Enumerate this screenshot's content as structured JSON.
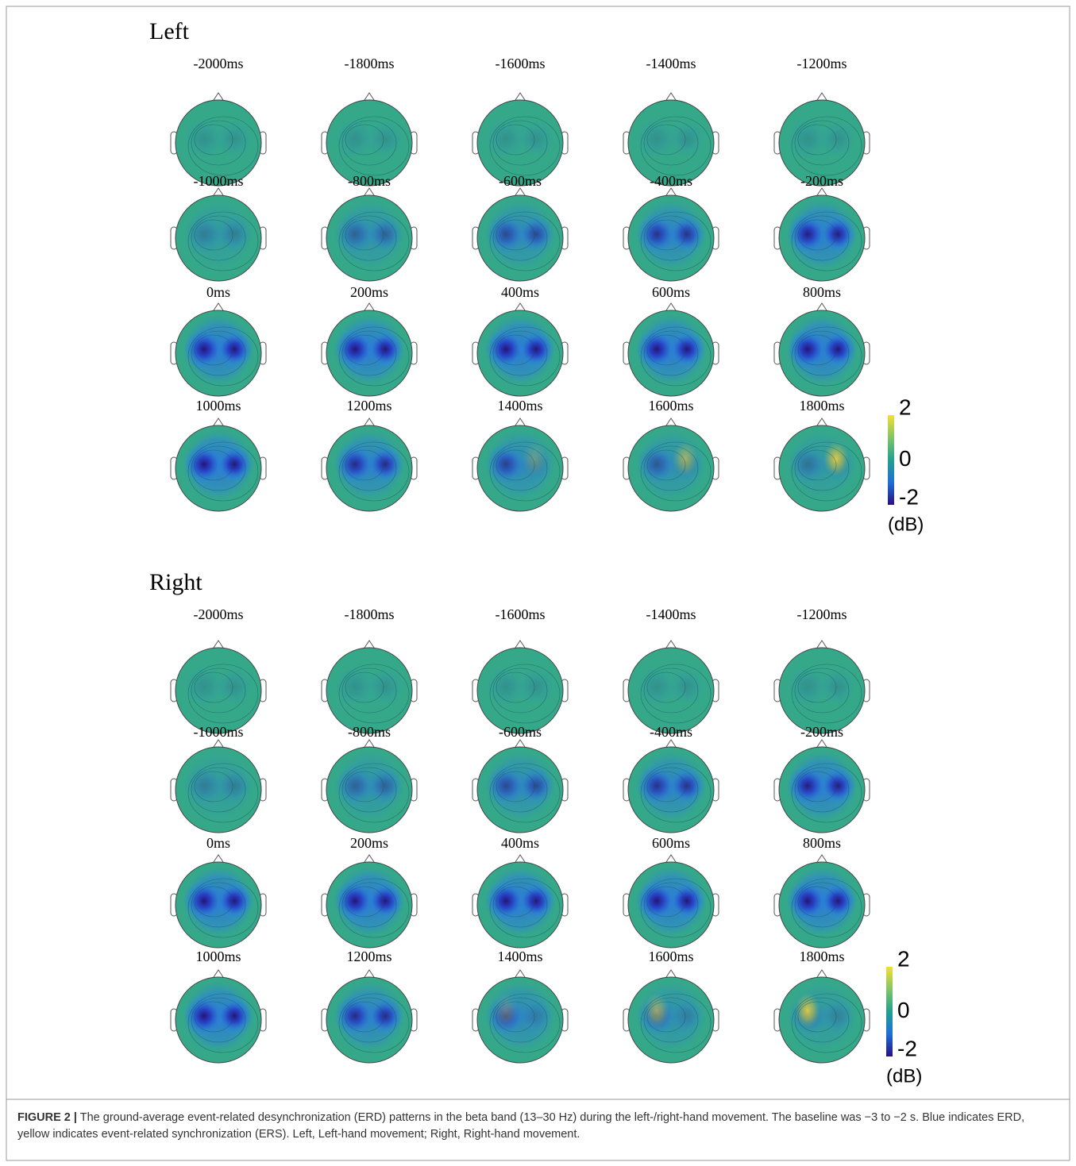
{
  "panels": [
    {
      "title": "Left",
      "times": [
        "-2000ms",
        "-1800ms",
        "-1600ms",
        "-1400ms",
        "-1200ms",
        "-1000ms",
        "-800ms",
        "-600ms",
        "-400ms",
        "-200ms",
        "0ms",
        "200ms",
        "400ms",
        "600ms",
        "800ms",
        "1000ms",
        "1200ms",
        "1400ms",
        "1600ms",
        "1800ms"
      ],
      "colorbar": {
        "ticks": [
          "2",
          "0",
          "-2"
        ],
        "unit": "(dB)"
      }
    },
    {
      "title": "Right",
      "times": [
        "-2000ms",
        "-1800ms",
        "-1600ms",
        "-1400ms",
        "-1200ms",
        "-1000ms",
        "-800ms",
        "-600ms",
        "-400ms",
        "-200ms",
        "0ms",
        "200ms",
        "400ms",
        "600ms",
        "800ms",
        "1000ms",
        "1200ms",
        "1400ms",
        "1600ms",
        "1800ms"
      ],
      "colorbar": {
        "ticks": [
          "2",
          "0",
          "-2"
        ],
        "unit": "(dB)"
      }
    }
  ],
  "caption": {
    "label": "FIGURE 2 |",
    "text": "The ground-average event-related desynchronization (ERD) patterns in the beta band (13–30 Hz) during the left-/right-hand movement. The baseline was −3 to −2 s. Blue indicates ERD, yellow indicates event-related synchronization (ERS). Left, Left-hand movement; Right, Right-hand movement."
  }
}
